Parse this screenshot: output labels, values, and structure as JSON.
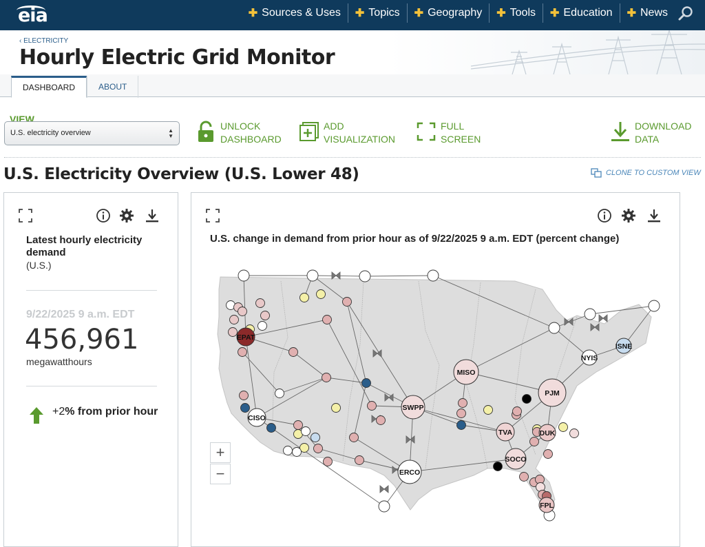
{
  "brand": {
    "logo_text": "eia"
  },
  "nav": {
    "items": [
      {
        "label": "Sources & Uses"
      },
      {
        "label": "Topics"
      },
      {
        "label": "Geography"
      },
      {
        "label": "Tools"
      },
      {
        "label": "Education"
      },
      {
        "label": "News"
      }
    ],
    "search_icon": "search-icon"
  },
  "header": {
    "breadcrumb": "‹ ELECTRICITY",
    "title": "Hourly Electric Grid Monitor"
  },
  "tabs": [
    {
      "label": "DASHBOARD",
      "active": true
    },
    {
      "label": "ABOUT",
      "active": false
    }
  ],
  "toolbar": {
    "view_label": "VIEW",
    "view_selected": "U.S. electricity overview",
    "unlock": [
      "UNLOCK",
      "DASHBOARD"
    ],
    "add": [
      "ADD",
      "VISUALIZATION"
    ],
    "fullscreen": [
      "FULL",
      "SCREEN"
    ],
    "download": [
      "DOWNLOAD",
      "DATA"
    ],
    "accent_color": "#5a9a2e"
  },
  "section": {
    "title": "U.S. Electricity Overview (U.S. Lower 48)",
    "clone_label": "CLONE TO CUSTOM VIEW"
  },
  "demand_panel": {
    "title": "Latest hourly electricity demand",
    "subtitle": "(U.S.)",
    "date": "9/22/2025 9 a.m. EDT",
    "value": "456,961",
    "unit": "megawatthours",
    "change_value": "+2",
    "change_suffix": "% from prior hour",
    "change_direction": "up"
  },
  "map_panel": {
    "title": "U.S. change in demand from prior hour as of 9/22/2025 9 a.m. EDT (percent change)",
    "zoom_in": "+",
    "zoom_out": "−",
    "regions": [
      "EPAT",
      "CISO",
      "SWPP",
      "MISO",
      "PJM",
      "NYIS",
      "ISNE",
      "TVA",
      "DUK",
      "SOCO",
      "ERCO",
      "FPL"
    ]
  }
}
